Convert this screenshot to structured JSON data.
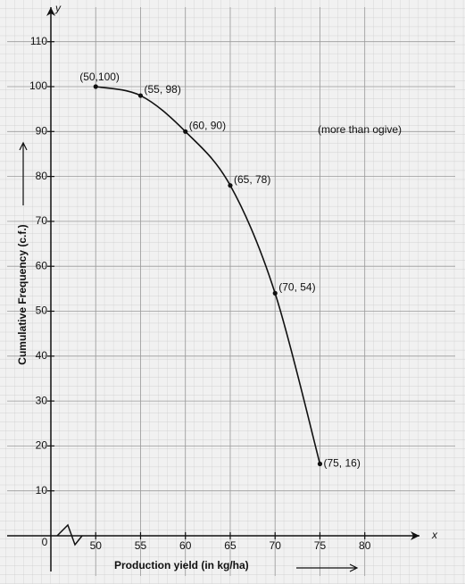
{
  "chart_data": {
    "type": "line",
    "x_label": "Production yield (in kg/ha)",
    "y_label": "Cumulative Frequency (c.f.)",
    "x_axis_letter": "x",
    "y_axis_letter": "y",
    "origin_label": "0",
    "annotation": "(more than ogive)",
    "x": [
      50,
      55,
      60,
      65,
      70,
      75
    ],
    "series": [
      {
        "name": "more than ogive",
        "color": "#111111",
        "values": [
          100,
          98,
          90,
          78,
          54,
          16
        ],
        "value_labels": [
          "(50,100)",
          "(55, 98)",
          "(60, 90)",
          "(65, 78)",
          "(70, 54)",
          "(75, 16)"
        ]
      }
    ],
    "xlim": [
      45,
      86
    ],
    "ylim": [
      0,
      117
    ],
    "xticks": [
      50,
      55,
      60,
      65,
      70,
      75,
      80
    ],
    "yticks": [
      10,
      20,
      30,
      40,
      50,
      60,
      70,
      80,
      90,
      100,
      110
    ],
    "grid": true
  }
}
